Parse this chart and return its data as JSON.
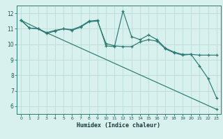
{
  "xlabel": "Humidex (Indice chaleur)",
  "bg_color": "#d8f0ee",
  "grid_color": "#c0deda",
  "line_color": "#2a7a72",
  "xlim": [
    -0.5,
    23.5
  ],
  "ylim": [
    5.5,
    12.5
  ],
  "yticks": [
    6,
    7,
    8,
    9,
    10,
    11,
    12
  ],
  "xticks": [
    0,
    1,
    2,
    3,
    4,
    5,
    6,
    7,
    8,
    9,
    10,
    11,
    12,
    13,
    14,
    15,
    16,
    17,
    18,
    19,
    20,
    21,
    22,
    23
  ],
  "line1_x": [
    0,
    1,
    2,
    3,
    4,
    5,
    6,
    7,
    8,
    9,
    10,
    11,
    12,
    13,
    14,
    15,
    16,
    17,
    18,
    19,
    20,
    21,
    22,
    23
  ],
  "line1_y": [
    11.55,
    11.05,
    11.0,
    10.75,
    10.9,
    11.0,
    10.95,
    11.15,
    11.5,
    11.55,
    9.9,
    9.85,
    12.15,
    10.5,
    10.3,
    10.6,
    10.3,
    9.75,
    9.5,
    9.35,
    9.35,
    8.6,
    7.8,
    6.55
  ],
  "line2_x": [
    0,
    1,
    2,
    3,
    4,
    5,
    6,
    7,
    8,
    9,
    10,
    11,
    12,
    13,
    14,
    15,
    16,
    17,
    18,
    19,
    20,
    21,
    22,
    23
  ],
  "line2_y": [
    11.55,
    11.05,
    11.0,
    10.7,
    10.85,
    11.0,
    10.9,
    11.1,
    11.45,
    11.5,
    10.05,
    9.9,
    9.85,
    9.85,
    10.15,
    10.3,
    10.2,
    9.7,
    9.45,
    9.3,
    9.35,
    9.3,
    9.3,
    9.3
  ],
  "line3_x": [
    0,
    3,
    23
  ],
  "line3_y": [
    11.55,
    10.75,
    5.8
  ]
}
